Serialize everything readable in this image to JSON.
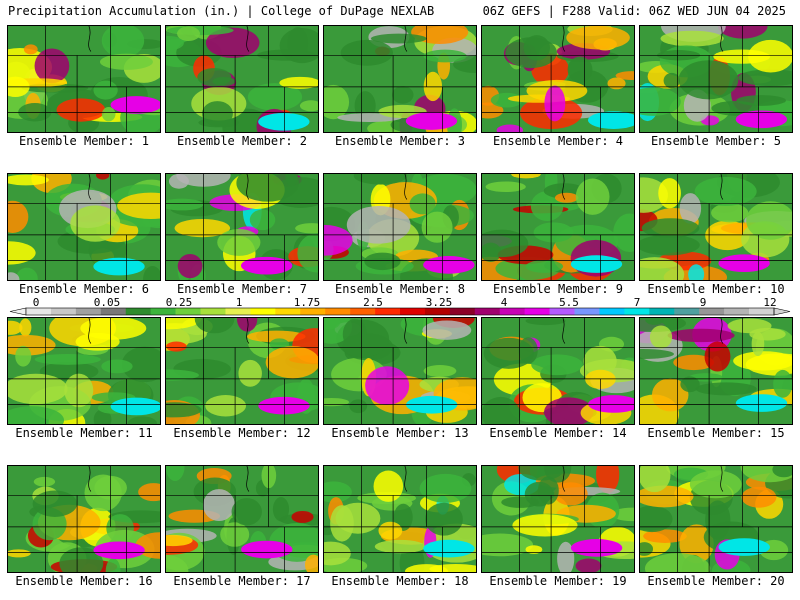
{
  "header": {
    "left_title": "Precipitation Accumulation (in.) | College of DuPage NEXLAB",
    "right_title": "06Z GEFS | F288 Valid: 06Z WED JUN 04 2025"
  },
  "member_label_prefix": "Ensemble Member: ",
  "members": [
    1,
    2,
    3,
    4,
    5,
    6,
    7,
    8,
    9,
    10,
    11,
    12,
    13,
    14,
    15,
    16,
    17,
    18,
    19,
    20
  ],
  "colorbar": {
    "tick_labels": [
      "0",
      "0.05",
      "0.25",
      "1",
      "1.75",
      "2.5",
      "3.25",
      "4",
      "5.5",
      "7",
      "9",
      "12"
    ],
    "colors": [
      "#e6e6e6",
      "#c8c8c8",
      "#a0a0a0",
      "#787878",
      "#2e8b2e",
      "#3cb43c",
      "#6ecf3c",
      "#a8e03c",
      "#e6f050",
      "#ffff00",
      "#ffd700",
      "#ffb000",
      "#ff8c00",
      "#ff6000",
      "#ff2a00",
      "#e00000",
      "#b40000",
      "#8c0028",
      "#a0006e",
      "#c800b4",
      "#e600e6",
      "#b45aff",
      "#7896ff",
      "#00c8ff",
      "#00e6e6",
      "#00b4b4",
      "#4fa0a0",
      "#969696",
      "#b4b4b4",
      "#d2d2d2"
    ]
  }
}
